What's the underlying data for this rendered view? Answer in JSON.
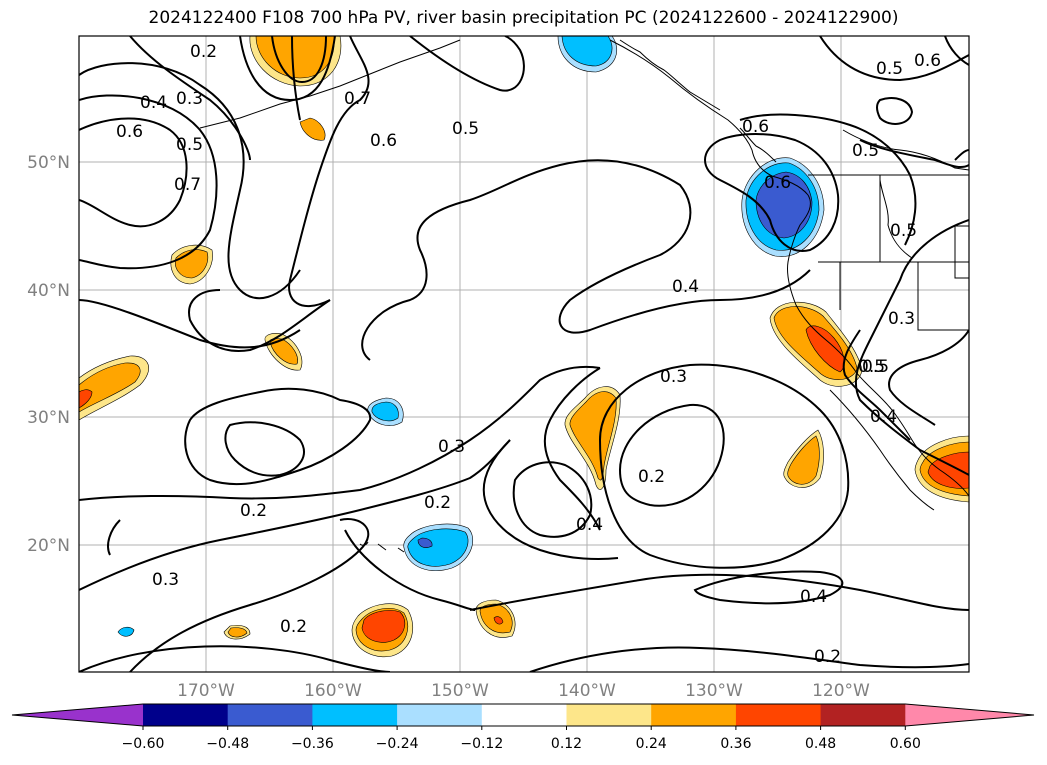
{
  "title": "2024122400 F108 700 hPa PV, river basin precipitation PC (2024122600 - 2024122900)",
  "map": {
    "lon_labels": [
      "170°W",
      "160°W",
      "150°W",
      "140°W",
      "130°W",
      "120°W"
    ],
    "lat_labels": [
      "50°N",
      "40°N",
      "30°N",
      "20°N"
    ],
    "grid": true
  },
  "contour_labels": [
    "0.2",
    "0.3",
    "0.4",
    "0.6",
    "0.5",
    "0.7",
    "0.6",
    "0.5",
    "0.7",
    "0.6",
    "0.5",
    "0.6",
    "0.5",
    "0.6",
    "0.5",
    "0.5",
    "0.4",
    "0.3",
    "0.3",
    "0.5",
    "0.4",
    "0.3",
    "0.2",
    "0.2",
    "0.4",
    "0.2",
    "0.3",
    "0.2",
    "0.4",
    "0.2"
  ],
  "colorbar": {
    "ticks": [
      "−0.60",
      "−0.48",
      "−0.36",
      "−0.24",
      "−0.12",
      "0.12",
      "0.24",
      "0.36",
      "0.48",
      "0.60"
    ],
    "colors": [
      "#9932cc",
      "#00008b",
      "#3a5bd0",
      "#00bfff",
      "#aadfff",
      "#ffffff",
      "#fde68a",
      "#ffa500",
      "#ff4500",
      "#b22222",
      "#ff88aa"
    ]
  },
  "fills": {
    "light_orange": "#fde68a",
    "orange": "#ffa500",
    "red": "#ff4500",
    "light_blue": "#aadfff",
    "blue": "#00bfff",
    "dark_blue": "#3a5bd0"
  }
}
